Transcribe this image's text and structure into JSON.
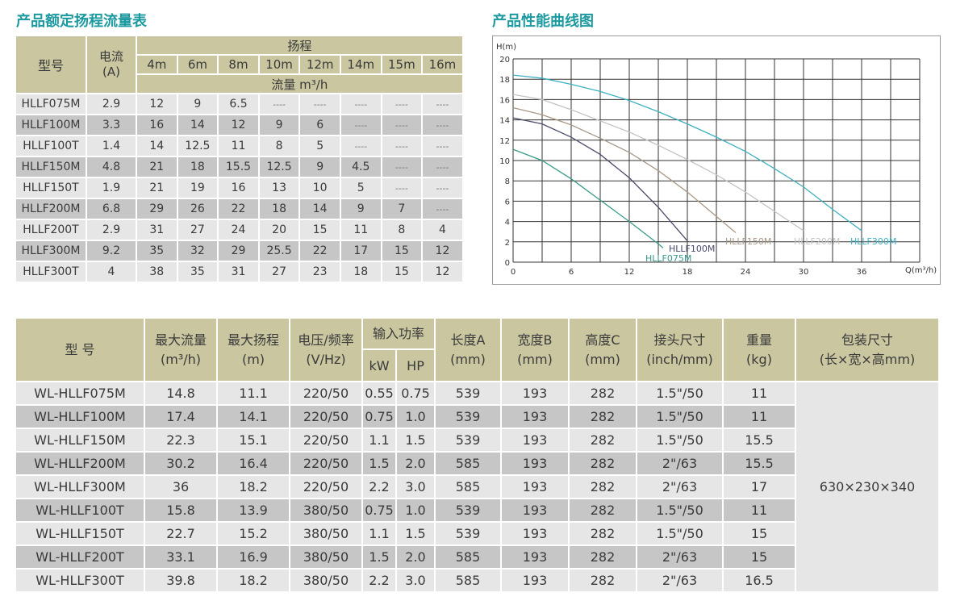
{
  "titles": {
    "table1": "产品额定扬程流量表",
    "chart": "产品性能曲线图"
  },
  "table1": {
    "h_model": "型号",
    "h_current": "电流\n(A)",
    "h_head": "扬程",
    "h_flow": "流量 m³/h",
    "heads": [
      "4m",
      "6m",
      "8m",
      "10m",
      "12m",
      "14m",
      "15m",
      "16m"
    ],
    "rows": [
      [
        "HLLF075M",
        "2.9",
        "12",
        "9",
        "6.5",
        "----",
        "----",
        "----",
        "----",
        "----"
      ],
      [
        "HLLF100M",
        "3.3",
        "16",
        "14",
        "12",
        "9",
        "6",
        "----",
        "----",
        "----"
      ],
      [
        "HLLF100T",
        "1.4",
        "14",
        "12.5",
        "11",
        "8",
        "5",
        "----",
        "----",
        "----"
      ],
      [
        "HLLF150M",
        "4.8",
        "21",
        "18",
        "15.5",
        "12.5",
        "9",
        "4.5",
        "----",
        "----"
      ],
      [
        "HLLF150T",
        "1.9",
        "21",
        "19",
        "16",
        "13",
        "10",
        "5",
        "----",
        "----"
      ],
      [
        "HLLF200M",
        "6.8",
        "29",
        "26",
        "22",
        "18",
        "14",
        "9",
        "7",
        "----"
      ],
      [
        "HLLF200T",
        "2.9",
        "31",
        "27",
        "24",
        "20",
        "15",
        "11",
        "8",
        "4"
      ],
      [
        "HLLF300M",
        "9.2",
        "35",
        "32",
        "29",
        "25.5",
        "22",
        "17",
        "15",
        "12"
      ],
      [
        "HLLF300T",
        "4",
        "38",
        "35",
        "31",
        "27",
        "23",
        "18",
        "15",
        "12"
      ]
    ]
  },
  "chart_data": {
    "type": "line",
    "ylabel": "H(m)",
    "xlabel": "Q(m³/h)",
    "xlim": [
      0,
      42
    ],
    "ylim": [
      0,
      20
    ],
    "xticks": [
      0,
      6,
      12,
      18,
      24,
      30,
      36
    ],
    "yticks": [
      0,
      2,
      4,
      6,
      8,
      10,
      12,
      14,
      16,
      18,
      20
    ],
    "grid": true,
    "series": [
      {
        "name": "HLLF075M",
        "color": "#3a9a8a",
        "x": [
          0,
          3,
          6,
          9,
          12,
          15,
          15.5
        ],
        "y": [
          11.1,
          10,
          8.2,
          6.1,
          4,
          1.8,
          1.4
        ]
      },
      {
        "name": "HLLF100M",
        "color": "#4a4a6a",
        "x": [
          0,
          3,
          6,
          9,
          12,
          15,
          18
        ],
        "y": [
          14.2,
          13.6,
          12.3,
          10.6,
          8.3,
          5.4,
          2.1
        ]
      },
      {
        "name": "HLLF150M",
        "color": "#a89888",
        "x": [
          0,
          3,
          6,
          9,
          12,
          15,
          18,
          21,
          23
        ],
        "y": [
          15.2,
          14.5,
          13.5,
          12.2,
          10.8,
          9,
          6.9,
          4.5,
          2.9
        ]
      },
      {
        "name": "HLLF200M",
        "color": "#c4c4c4",
        "x": [
          0,
          3,
          6,
          9,
          12,
          15,
          18,
          21,
          24,
          27,
          30
        ],
        "y": [
          16.5,
          16,
          15,
          13.9,
          12.8,
          11.5,
          10.1,
          8.6,
          6.9,
          5,
          3.1
        ]
      },
      {
        "name": "HLLF300M",
        "color": "#3fb0c0",
        "x": [
          0,
          3,
          6,
          9,
          12,
          15,
          18,
          21,
          24,
          27,
          30,
          33,
          36
        ],
        "y": [
          18.4,
          18.1,
          17.5,
          16.8,
          15.9,
          14.8,
          13.6,
          12.3,
          10.9,
          9.2,
          7.4,
          5.2,
          3.1
        ]
      }
    ]
  },
  "table2": {
    "h": [
      "型 号",
      "最大流量\n(m³/h)",
      "最大扬程\n(m)",
      "电压/频率\n(V/Hz)",
      "输入功率",
      "长度A\n(mm)",
      "宽度B\n(mm)",
      "高度C\n(mm)",
      "接头尺寸\n(inch/mm)",
      "重量\n(kg)",
      "包装尺寸\n(长×宽×高mm)"
    ],
    "h_kw": "kW",
    "h_hp": "HP",
    "package": "630×230×340",
    "rows": [
      [
        "WL-HLLF075M",
        "14.8",
        "11.1",
        "220/50",
        "0.55",
        "0.75",
        "539",
        "193",
        "282",
        "1.5\"/50",
        "11"
      ],
      [
        "WL-HLLF100M",
        "17.4",
        "14.1",
        "220/50",
        "0.75",
        "1.0",
        "539",
        "193",
        "282",
        "1.5\"/50",
        "11"
      ],
      [
        "WL-HLLF150M",
        "22.3",
        "15.1",
        "220/50",
        "1.1",
        "1.5",
        "539",
        "193",
        "282",
        "1.5\"/50",
        "15.5"
      ],
      [
        "WL-HLLF200M",
        "30.2",
        "16.4",
        "220/50",
        "1.5",
        "2.0",
        "585",
        "193",
        "282",
        "2\"/63",
        "15.5"
      ],
      [
        "WL-HLLF300M",
        "36",
        "18.2",
        "220/50",
        "2.2",
        "3.0",
        "585",
        "193",
        "282",
        "2\"/63",
        "17"
      ],
      [
        "WL-HLLF100T",
        "15.8",
        "13.9",
        "380/50",
        "0.75",
        "1.0",
        "539",
        "193",
        "282",
        "1.5\"/50",
        "11"
      ],
      [
        "WL-HLLF150T",
        "22.7",
        "15.2",
        "380/50",
        "1.1",
        "1.5",
        "539",
        "193",
        "282",
        "1.5\"/50",
        "15"
      ],
      [
        "WL-HLLF200T",
        "33.1",
        "16.9",
        "380/50",
        "1.5",
        "2.0",
        "585",
        "193",
        "282",
        "2\"/63",
        "15"
      ],
      [
        "WL-HLLF300T",
        "39.8",
        "18.2",
        "380/50",
        "2.2",
        "3.0",
        "585",
        "193",
        "282",
        "2\"/63",
        "16.5"
      ]
    ]
  }
}
